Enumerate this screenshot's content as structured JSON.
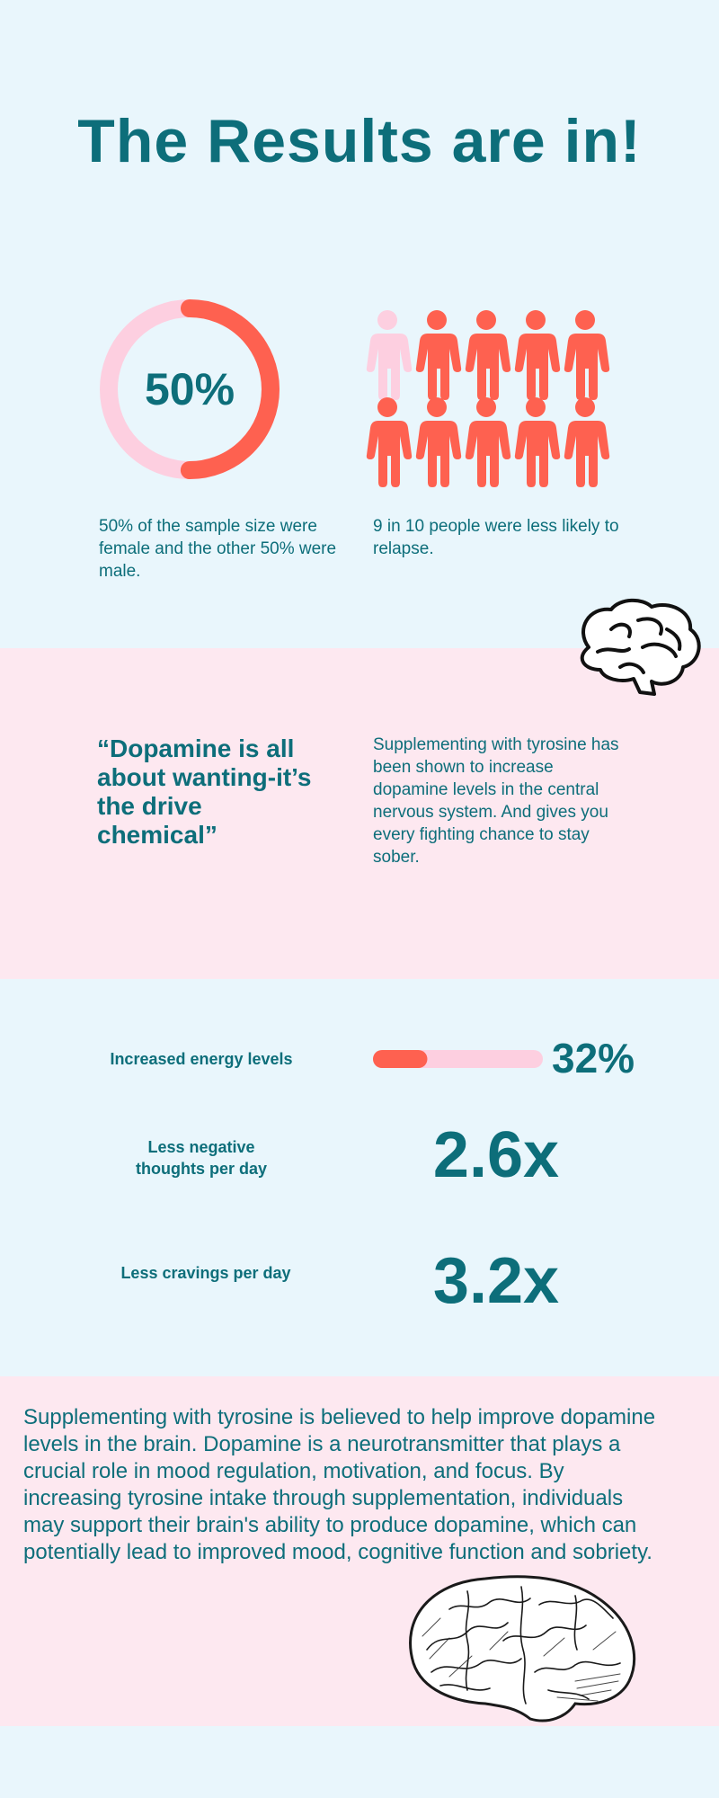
{
  "header": {
    "title": "The Results are in!"
  },
  "stats": {
    "donut": {
      "value": 50,
      "label": "50%"
    },
    "donut_caption": "50% of the sample size were female and the other 50% were male.",
    "people": {
      "total": 10,
      "highlighted": 9
    },
    "people_caption": "9 in 10 people were less likely to relapse."
  },
  "quote": {
    "text": "“Dopamine is all about wanting-it’s the drive chemical”",
    "body": "Supplementing with tyrosine has been shown to increase dopamine levels in the central nervous system. And gives you every fighting chance to stay sober."
  },
  "metrics": [
    {
      "label": "Increased energy levels",
      "bar": 32,
      "value": "32%"
    },
    {
      "label": "Less negative thoughts per day",
      "value": "2.6x"
    },
    {
      "label": "Less cravings per day",
      "value": "3.2x"
    }
  ],
  "summary": {
    "text": "Supplementing with tyrosine is believed to help improve dopamine levels in the brain. Dopamine is a neurotransmitter that plays a crucial role in mood regulation, motivation, and focus. By increasing tyrosine intake through supplementation, individuals may support their brain's ability to produce dopamine, which can potentially lead to improved mood, cognitive function and sobriety."
  }
}
